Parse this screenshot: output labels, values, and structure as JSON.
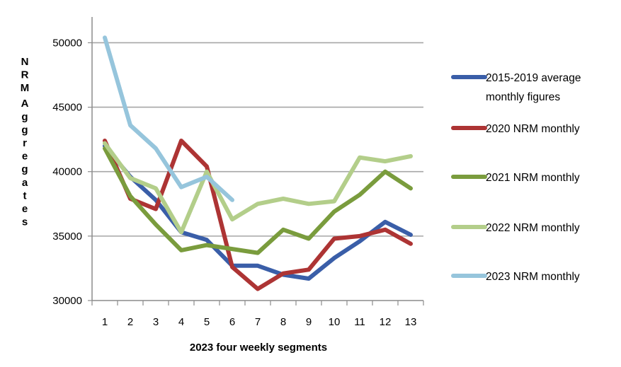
{
  "chart_data": {
    "type": "line",
    "xlabel": "2023 four weekly segments",
    "ylabel": "NRM Aggregates",
    "x": [
      1,
      2,
      3,
      4,
      5,
      6,
      7,
      8,
      9,
      10,
      11,
      12,
      13
    ],
    "xticks": [
      "1",
      "2",
      "3",
      "4",
      "5",
      "6",
      "7",
      "8",
      "9",
      "10",
      "11",
      "12",
      "13"
    ],
    "ylim": [
      30000,
      52000
    ],
    "yticks": [
      "30000",
      "35000",
      "40000",
      "45000",
      "50000"
    ],
    "ytick_values": [
      30000,
      35000,
      40000,
      45000,
      50000
    ],
    "grid": true,
    "legend_position": "right",
    "series": [
      {
        "name": "2015-2019 average monthly figures",
        "color": "#3a5ea8",
        "values": [
          42000,
          39600,
          37800,
          35300,
          34700,
          32700,
          32700,
          32000,
          31700,
          33300,
          34600,
          36100,
          35100
        ]
      },
      {
        "name": "2020 NRM monthly",
        "color": "#ad3434",
        "values": [
          42400,
          37900,
          37100,
          42400,
          40400,
          32600,
          30900,
          32100,
          32400,
          34800,
          35000,
          35500,
          34400
        ]
      },
      {
        "name": "2021 NRM monthly",
        "color": "#7a9c3d",
        "values": [
          41800,
          38100,
          35900,
          33900,
          34300,
          34000,
          33700,
          35500,
          34800,
          36900,
          38200,
          40000,
          38700
        ]
      },
      {
        "name": "2022 NRM monthly",
        "color": "#b3ce8a",
        "values": [
          42200,
          39500,
          38700,
          35300,
          40000,
          36300,
          37500,
          37900,
          37500,
          37700,
          41100,
          40800,
          41200
        ]
      },
      {
        "name": "2023 NRM monthly",
        "color": "#96c5dc",
        "values": [
          50400,
          43600,
          41800,
          38800,
          39600,
          37800,
          null,
          null,
          null,
          null,
          null,
          null,
          null
        ]
      }
    ],
    "legend_lines": [
      [
        "2015-2019 average",
        "monthly figures"
      ],
      [
        "2020 NRM monthly"
      ],
      [
        "2021 NRM monthly"
      ],
      [
        "2022 NRM monthly"
      ],
      [
        "2023 NRM monthly"
      ]
    ]
  }
}
